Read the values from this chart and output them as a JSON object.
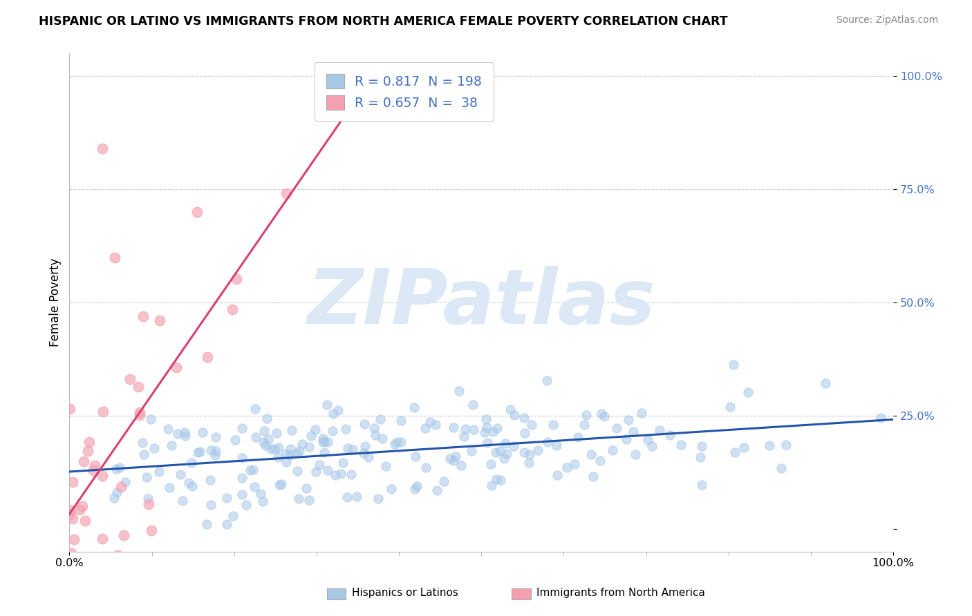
{
  "title": "HISPANIC OR LATINO VS IMMIGRANTS FROM NORTH AMERICA FEMALE POVERTY CORRELATION CHART",
  "source": "Source: ZipAtlas.com",
  "ylabel": "Female Poverty",
  "xlim": [
    0.0,
    1.0
  ],
  "ylim": [
    -0.05,
    1.05
  ],
  "y_ticks": [
    0.0,
    0.25,
    0.5,
    0.75,
    1.0
  ],
  "y_tick_labels": [
    "",
    "25.0%",
    "50.0%",
    "75.0%",
    "100.0%"
  ],
  "x_tick_labels": [
    "0.0%",
    "100.0%"
  ],
  "legend1_R": "0.817",
  "legend1_N": "198",
  "legend2_R": "0.657",
  "legend2_N": "38",
  "series1_color": "#a8c8e8",
  "series2_color": "#f4a0b0",
  "line1_color": "#2255aa",
  "line2_color": "#d84070",
  "tick_color": "#4472c4",
  "watermark_text": "ZIPatlas",
  "watermark_color": "#dce8f5",
  "background_color": "#ffffff",
  "grid_color": "#cccccc",
  "bottom_label1": "Hispanics or Latinos",
  "bottom_label2": "Immigrants from North America",
  "seed": 42
}
